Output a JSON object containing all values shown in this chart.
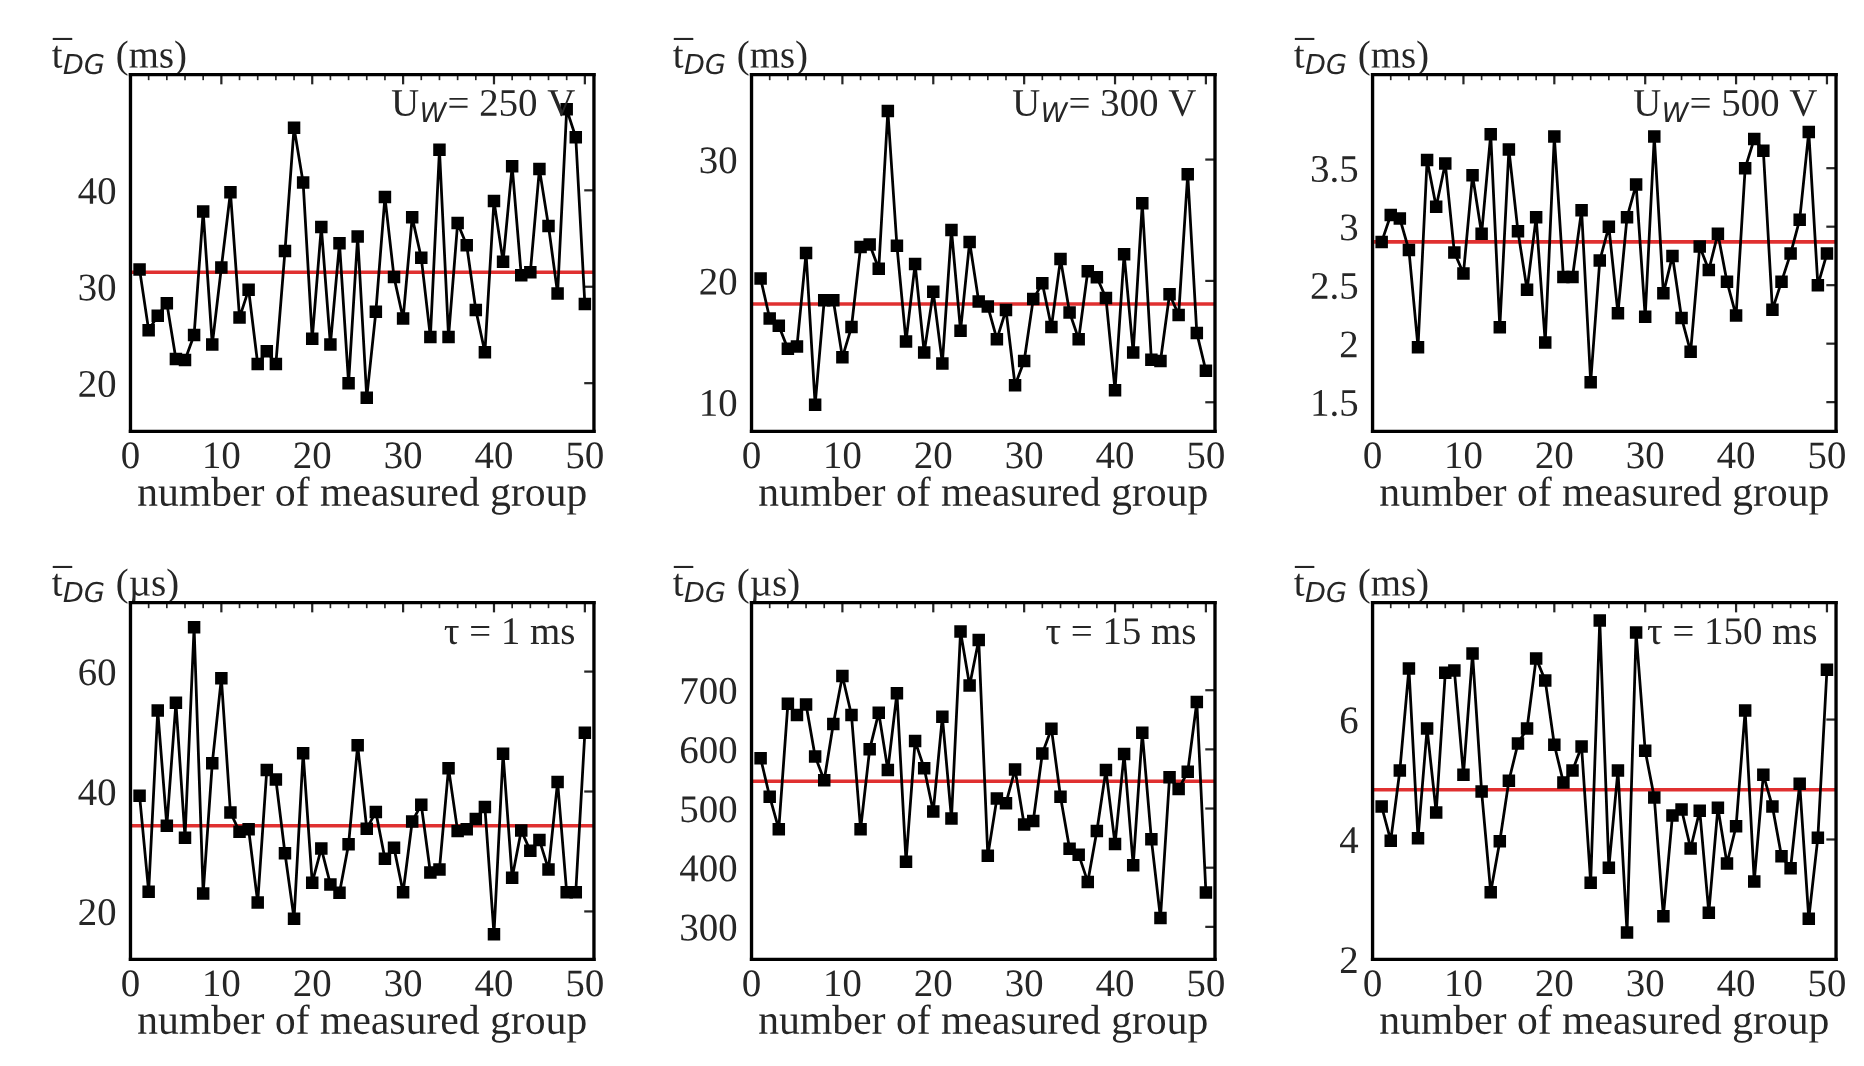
{
  "chart_data": [
    {
      "type": "line",
      "ylabel": "t̅$_{DG}$ (ms)",
      "xlabel": "number of measured group",
      "annotations": [
        "U$_{W}$= 250 V"
      ],
      "marker": "square",
      "grid": false,
      "legend": false,
      "xlim": [
        0,
        51
      ],
      "xticks": [
        0,
        10,
        20,
        30,
        40,
        50
      ],
      "ylim": [
        15,
        52
      ],
      "yticks": [
        20,
        30,
        40
      ],
      "ref_lines": [
        {
          "axis": "y",
          "value": 31.5,
          "color": "#e03030"
        }
      ],
      "x": [
        1,
        2,
        3,
        4,
        5,
        6,
        7,
        8,
        9,
        10,
        11,
        12,
        13,
        14,
        15,
        16,
        17,
        18,
        19,
        20,
        21,
        22,
        23,
        24,
        25,
        26,
        27,
        28,
        29,
        30,
        31,
        32,
        33,
        34,
        35,
        36,
        37,
        38,
        39,
        40,
        41,
        42,
        43,
        44,
        45,
        46,
        47,
        48,
        49,
        50
      ],
      "series": [
        {
          "color": "#000000",
          "values": [
            31.8,
            25.5,
            27,
            28.3,
            22.5,
            22.4,
            25,
            37.8,
            24,
            32,
            39.8,
            26.8,
            29.7,
            22,
            23.3,
            22,
            33.7,
            46.5,
            40.8,
            24.6,
            36.2,
            24,
            34.5,
            20,
            35.2,
            18.5,
            27.4,
            39.3,
            31,
            26.7,
            37.2,
            33,
            24.8,
            44.2,
            24.8,
            36.6,
            34.3,
            27.6,
            23.2,
            38.9,
            32.6,
            42.5,
            31.2,
            31.5,
            42.2,
            36.3,
            29.3,
            48.4,
            45.5,
            28.2
          ]
        }
      ]
    },
    {
      "type": "line",
      "ylabel": "t̅$_{DG}$ (ms)",
      "xlabel": "number of measured group",
      "annotations": [
        "U$_{W}$= 300 V"
      ],
      "marker": "square",
      "grid": false,
      "legend": false,
      "xlim": [
        0,
        51
      ],
      "xticks": [
        0,
        10,
        20,
        30,
        40,
        50
      ],
      "ylim": [
        7.6,
        37
      ],
      "yticks": [
        10,
        20,
        30
      ],
      "ref_lines": [
        {
          "axis": "y",
          "value": 18.1,
          "color": "#e03030"
        }
      ],
      "x": [
        1,
        2,
        3,
        4,
        5,
        6,
        7,
        8,
        9,
        10,
        11,
        12,
        13,
        14,
        15,
        16,
        17,
        18,
        19,
        20,
        21,
        22,
        23,
        24,
        25,
        26,
        27,
        28,
        29,
        30,
        31,
        32,
        33,
        34,
        35,
        36,
        37,
        38,
        39,
        40,
        41,
        42,
        43,
        44,
        45,
        46,
        47,
        48,
        49,
        50
      ],
      "series": [
        {
          "color": "#000000",
          "values": [
            20.2,
            16.9,
            16.3,
            14.4,
            14.6,
            22.3,
            9.8,
            18.4,
            18.4,
            13.7,
            16.2,
            22.8,
            23,
            21,
            34,
            22.9,
            15,
            21.4,
            14.1,
            19.1,
            13.2,
            24.2,
            15.9,
            23.2,
            18.3,
            17.9,
            15.2,
            17.6,
            11.4,
            13.4,
            18.5,
            19.8,
            16.2,
            21.8,
            17.4,
            15.2,
            20.8,
            20.3,
            18.6,
            11,
            22.2,
            14.1,
            26.4,
            13.5,
            13.4,
            18.9,
            17.2,
            28.8,
            15.7,
            12.6
          ]
        }
      ]
    },
    {
      "type": "line",
      "ylabel": "t̅$_{DG}$ (ms)",
      "xlabel": "number of measured group",
      "annotations": [
        "U$_{W}$= 500 V"
      ],
      "marker": "square",
      "grid": false,
      "legend": false,
      "xlim": [
        0,
        51
      ],
      "xticks": [
        0,
        10,
        20,
        30,
        40,
        50
      ],
      "ylim": [
        1.25,
        4.3
      ],
      "yticks": [
        1.5,
        2,
        2.5,
        3,
        3.5
      ],
      "ref_lines": [
        {
          "axis": "y",
          "value": 2.87,
          "color": "#e03030"
        }
      ],
      "x": [
        1,
        2,
        3,
        4,
        5,
        6,
        7,
        8,
        9,
        10,
        11,
        12,
        13,
        14,
        15,
        16,
        17,
        18,
        19,
        20,
        21,
        22,
        23,
        24,
        25,
        26,
        27,
        28,
        29,
        30,
        31,
        32,
        33,
        34,
        35,
        36,
        37,
        38,
        39,
        40,
        41,
        42,
        43,
        44,
        45,
        46,
        47,
        48,
        49,
        50
      ],
      "series": [
        {
          "color": "#000000",
          "values": [
            2.87,
            3.1,
            3.07,
            2.8,
            1.97,
            3.57,
            3.17,
            3.54,
            2.78,
            2.6,
            3.44,
            2.94,
            3.79,
            2.14,
            3.66,
            2.96,
            2.46,
            3.08,
            2.01,
            3.77,
            2.57,
            2.57,
            3.14,
            1.67,
            2.71,
            3.0,
            2.26,
            3.08,
            3.36,
            2.23,
            3.77,
            2.43,
            2.75,
            2.22,
            1.93,
            2.83,
            2.63,
            2.94,
            2.53,
            2.24,
            3.5,
            3.75,
            3.65,
            2.29,
            2.53,
            2.77,
            3.06,
            3.81,
            2.5,
            2.77
          ]
        }
      ]
    },
    {
      "type": "line",
      "ylabel": "t̅$_{DG}$ (µs)",
      "xlabel": "number of measured group",
      "annotations": [
        "τ = 1 ms"
      ],
      "marker": "square",
      "grid": false,
      "legend": false,
      "xlim": [
        0,
        51
      ],
      "xticks": [
        0,
        10,
        20,
        30,
        40,
        50
      ],
      "ylim": [
        12,
        71.5
      ],
      "yticks": [
        20,
        40,
        60
      ],
      "ref_lines": [
        {
          "axis": "y",
          "value": 34.3,
          "color": "#e03030"
        }
      ],
      "x": [
        1,
        2,
        3,
        4,
        5,
        6,
        7,
        8,
        9,
        10,
        11,
        12,
        13,
        14,
        15,
        16,
        17,
        18,
        19,
        20,
        21,
        22,
        23,
        24,
        25,
        26,
        27,
        28,
        29,
        30,
        31,
        32,
        33,
        34,
        35,
        36,
        37,
        38,
        39,
        40,
        41,
        42,
        43,
        44,
        45,
        46,
        47,
        48,
        49,
        50
      ],
      "series": [
        {
          "color": "#000000",
          "values": [
            39.3,
            23.3,
            53.5,
            34.3,
            54.8,
            32.3,
            67.4,
            23,
            44.7,
            58.9,
            36.5,
            33.3,
            33.7,
            21.5,
            43.6,
            42,
            29.7,
            18.8,
            46.4,
            24.8,
            30.5,
            24.5,
            23.1,
            31.2,
            47.7,
            33.8,
            36.6,
            28.8,
            30.6,
            23.2,
            35,
            37.8,
            26.5,
            27,
            43.9,
            33.4,
            33.7,
            35.4,
            37.4,
            16.2,
            46.3,
            25.6,
            33.5,
            30.1,
            31.9,
            27,
            41.6,
            23.2,
            23.2,
            49.8
          ]
        }
      ]
    },
    {
      "type": "line",
      "ylabel": "t̅$_{DG}$ (µs)",
      "xlabel": "number of measured group",
      "annotations": [
        "τ = 15 ms"
      ],
      "marker": "square",
      "grid": false,
      "legend": false,
      "xlim": [
        0,
        51
      ],
      "xticks": [
        0,
        10,
        20,
        30,
        40,
        50
      ],
      "ylim": [
        245,
        848
      ],
      "yticks": [
        300,
        400,
        500,
        600,
        700
      ],
      "ref_lines": [
        {
          "axis": "y",
          "value": 546,
          "color": "#e03030"
        }
      ],
      "x": [
        1,
        2,
        3,
        4,
        5,
        6,
        7,
        8,
        9,
        10,
        11,
        12,
        13,
        14,
        15,
        16,
        17,
        18,
        19,
        20,
        21,
        22,
        23,
        24,
        25,
        26,
        27,
        28,
        29,
        30,
        31,
        32,
        33,
        34,
        35,
        36,
        37,
        38,
        39,
        40,
        41,
        42,
        43,
        44,
        45,
        46,
        47,
        48,
        49,
        50
      ],
      "series": [
        {
          "color": "#000000",
          "values": [
            585,
            520,
            465,
            677,
            658,
            676,
            588,
            548,
            643,
            724,
            658,
            465,
            600,
            662,
            565,
            695,
            410,
            614,
            568,
            495,
            655,
            483,
            799,
            708,
            785,
            420,
            517,
            509,
            566,
            473,
            479,
            593,
            635,
            520,
            432,
            422,
            376,
            462,
            565,
            440,
            592,
            404,
            628,
            448,
            315,
            553,
            533,
            562,
            680,
            358
          ]
        }
      ]
    },
    {
      "type": "line",
      "ylabel": "t̅$_{DG}$ (ms)",
      "xlabel": "number of measured group",
      "annotations": [
        "τ = 150 ms"
      ],
      "marker": "square",
      "grid": false,
      "legend": false,
      "xlim": [
        0,
        51
      ],
      "xticks": [
        0,
        10,
        20,
        30,
        40,
        50
      ],
      "ylim": [
        2,
        7.95
      ],
      "yticks": [
        2,
        4,
        6
      ],
      "ref_lines": [
        {
          "axis": "y",
          "value": 4.83,
          "color": "#e03030"
        }
      ],
      "x": [
        1,
        2,
        3,
        4,
        5,
        6,
        7,
        8,
        9,
        10,
        11,
        12,
        13,
        14,
        15,
        16,
        17,
        18,
        19,
        20,
        21,
        22,
        23,
        24,
        25,
        26,
        27,
        28,
        29,
        30,
        31,
        32,
        33,
        34,
        35,
        36,
        37,
        38,
        39,
        40,
        41,
        42,
        43,
        44,
        45,
        46,
        47,
        48,
        49,
        50
      ],
      "series": [
        {
          "color": "#000000",
          "values": [
            4.55,
            3.98,
            5.15,
            6.85,
            4.02,
            5.85,
            4.45,
            6.78,
            6.82,
            5.08,
            7.1,
            4.8,
            3.12,
            3.97,
            4.98,
            5.6,
            5.85,
            7.02,
            6.65,
            5.58,
            4.95,
            5.15,
            5.55,
            3.28,
            7.65,
            3.53,
            5.15,
            2.45,
            7.45,
            5.48,
            4.7,
            2.72,
            4.4,
            4.5,
            3.85,
            4.48,
            2.78,
            4.53,
            3.6,
            4.22,
            6.15,
            3.3,
            5.08,
            4.55,
            3.72,
            3.52,
            4.93,
            2.68,
            4.03,
            6.83
          ]
        }
      ]
    }
  ]
}
